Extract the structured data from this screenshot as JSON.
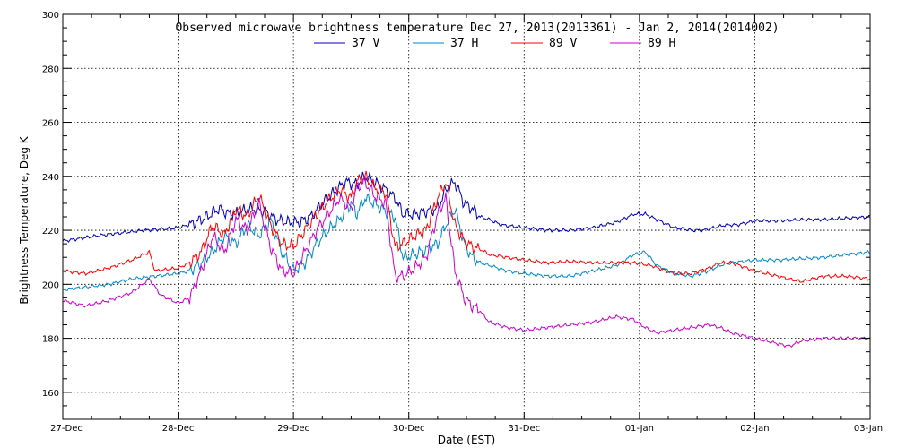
{
  "chart_data": {
    "type": "line",
    "title": "Observed microwave brightness temperature Dec 27, 2013(2013361) - Jan  2, 2014(2014002)",
    "xlabel": "Date (EST)",
    "ylabel": "Brightness Temperature, Deg K",
    "ylim": [
      150,
      300
    ],
    "xlim": [
      0,
      7
    ],
    "x_tick_labels": [
      "27-Dec",
      "28-Dec",
      "29-Dec",
      "30-Dec",
      "31-Dec",
      "01-Jan",
      "02-Jan",
      "03-Jan"
    ],
    "y_ticks": [
      160,
      180,
      200,
      220,
      240,
      260,
      280,
      300
    ],
    "grid": true,
    "legend_placement": "top-center",
    "x_unit": "days since 27-Dec 00:00 EST",
    "series": [
      {
        "name": "37 V",
        "color": "#0000b4",
        "x": [
          0,
          0.15,
          0.3,
          0.5,
          0.7,
          0.9,
          1.0,
          1.1,
          1.25,
          1.35,
          1.45,
          1.55,
          1.65,
          1.75,
          1.85,
          1.95,
          2.05,
          2.15,
          2.25,
          2.35,
          2.45,
          2.55,
          2.62,
          2.7,
          2.8,
          2.88,
          2.95,
          3.05,
          3.15,
          3.25,
          3.32,
          3.4,
          3.48,
          3.55,
          3.62,
          3.7,
          3.8,
          4.0,
          4.2,
          4.4,
          4.6,
          4.8,
          4.95,
          5.05,
          5.15,
          5.3,
          5.45,
          5.55,
          5.65,
          5.75,
          5.85,
          6.0,
          6.2,
          6.4,
          6.6,
          6.8,
          7.0
        ],
        "values": [
          216,
          217,
          218,
          219,
          220,
          220.5,
          221,
          222,
          225,
          228,
          226,
          227,
          228,
          227,
          224,
          223,
          223,
          225,
          230,
          234,
          238,
          237,
          240,
          238,
          235,
          232,
          226,
          226,
          227,
          228,
          235,
          238,
          230,
          228,
          225,
          224,
          222,
          221,
          220,
          220,
          221,
          223,
          226,
          226,
          224,
          221,
          220,
          220,
          221,
          222,
          222,
          223.5,
          223.5,
          224,
          224,
          224.5,
          225
        ]
      },
      {
        "name": "37 H",
        "color": "#0088cc",
        "x": [
          0,
          0.2,
          0.4,
          0.6,
          0.8,
          1.0,
          1.1,
          1.2,
          1.3,
          1.4,
          1.5,
          1.6,
          1.7,
          1.8,
          1.9,
          2.0,
          2.1,
          2.2,
          2.3,
          2.4,
          2.5,
          2.55,
          2.62,
          2.7,
          2.8,
          2.88,
          2.95,
          3.05,
          3.15,
          3.25,
          3.32,
          3.4,
          3.48,
          3.55,
          3.62,
          3.7,
          3.85,
          4.0,
          4.2,
          4.4,
          4.6,
          4.8,
          4.95,
          5.05,
          5.15,
          5.3,
          5.45,
          5.6,
          5.7,
          5.8,
          6.0,
          6.2,
          6.4,
          6.6,
          6.8,
          7.0
        ],
        "values": [
          198,
          199,
          200,
          202,
          203,
          204,
          205,
          208,
          212,
          218,
          215,
          222,
          218,
          224,
          212,
          205,
          208,
          215,
          220,
          224,
          230,
          226,
          232,
          230,
          227,
          225,
          210,
          211,
          213,
          215,
          222,
          228,
          215,
          210,
          208,
          207,
          205,
          204,
          203,
          203,
          205,
          207,
          211,
          212,
          207,
          204,
          203,
          205,
          207,
          208,
          209,
          209,
          209.5,
          210,
          211,
          212
        ]
      },
      {
        "name": "89 V",
        "color": "#ff0000",
        "x": [
          0,
          0.2,
          0.4,
          0.6,
          0.75,
          0.8,
          1.0,
          1.1,
          1.2,
          1.3,
          1.4,
          1.5,
          1.6,
          1.7,
          1.8,
          1.9,
          2.0,
          2.1,
          2.2,
          2.3,
          2.4,
          2.5,
          2.55,
          2.62,
          2.7,
          2.8,
          2.88,
          2.95,
          3.05,
          3.15,
          3.25,
          3.32,
          3.4,
          3.48,
          3.55,
          3.62,
          3.7,
          3.85,
          4.0,
          4.2,
          4.4,
          4.6,
          4.8,
          4.95,
          5.1,
          5.3,
          5.45,
          5.6,
          5.7,
          5.8,
          6.0,
          6.2,
          6.4,
          6.6,
          6.8,
          7.0
        ],
        "values": [
          205,
          204,
          206,
          209,
          212,
          205,
          206,
          208,
          212,
          222,
          218,
          228,
          225,
          233,
          222,
          215,
          214,
          220,
          226,
          231,
          235,
          232,
          238,
          240,
          236,
          234,
          214,
          215,
          218,
          220,
          232,
          238,
          222,
          216,
          214,
          213,
          211,
          210,
          209,
          208,
          208.5,
          208,
          208,
          208,
          207,
          204,
          204,
          206,
          208,
          208,
          205,
          203,
          201,
          203,
          203,
          202
        ]
      },
      {
        "name": "89 H",
        "color": "#cc00cc",
        "x": [
          0,
          0.2,
          0.4,
          0.6,
          0.75,
          0.85,
          1.0,
          1.1,
          1.2,
          1.3,
          1.4,
          1.5,
          1.6,
          1.7,
          1.8,
          1.9,
          2.0,
          2.1,
          2.2,
          2.3,
          2.4,
          2.5,
          2.55,
          2.62,
          2.7,
          2.8,
          2.88,
          2.95,
          3.05,
          3.15,
          3.25,
          3.32,
          3.4,
          3.48,
          3.55,
          3.62,
          3.7,
          3.85,
          4.0,
          4.2,
          4.4,
          4.6,
          4.8,
          4.95,
          5.05,
          5.15,
          5.3,
          5.45,
          5.6,
          5.7,
          5.8,
          6.0,
          6.2,
          6.3,
          6.4,
          6.6,
          6.8,
          7.0
        ],
        "values": [
          194,
          192,
          194,
          197,
          202,
          196,
          193,
          195,
          205,
          218,
          212,
          224,
          220,
          230,
          214,
          205,
          204,
          212,
          220,
          226,
          232,
          228,
          236,
          238,
          233,
          230,
          203,
          203,
          206,
          210,
          226,
          232,
          205,
          195,
          192,
          190,
          186,
          184,
          183,
          184,
          185,
          186,
          188,
          187,
          184,
          182,
          183,
          184,
          185,
          184,
          182,
          180,
          178,
          177,
          179,
          180,
          180,
          180
        ]
      }
    ]
  }
}
